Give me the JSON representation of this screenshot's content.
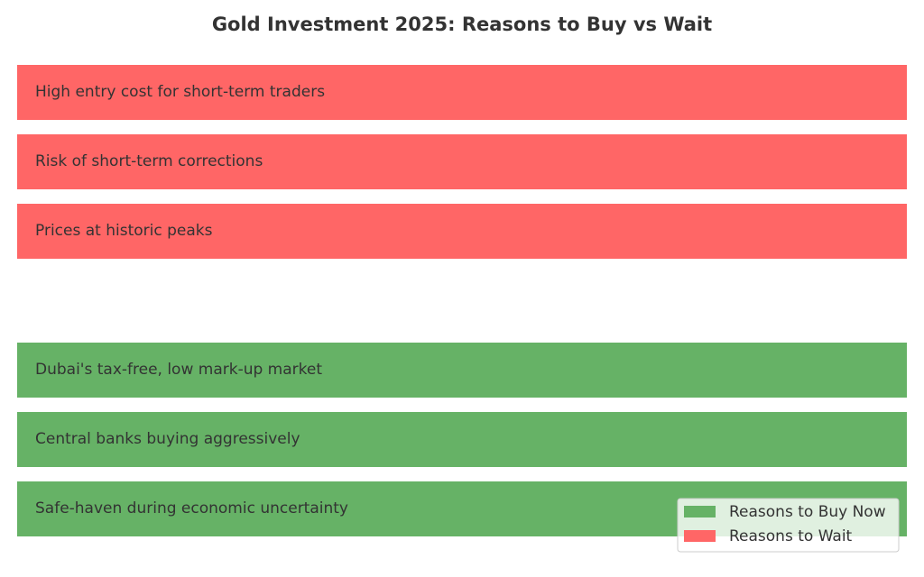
{
  "title": "Gold Investment 2025: Reasons to Buy vs Wait",
  "groups": [
    {
      "name": "Reasons to Buy Now",
      "color": "#66b266",
      "items": [
        "Dubai's tax-free, low mark-up market",
        "Central banks buying aggressively",
        "Safe-haven during economic uncertainty"
      ]
    },
    {
      "name": "Reasons to Wait",
      "color": "#ff6666",
      "items": [
        "High entry cost for short-term traders",
        "Risk of short-term corrections",
        "Prices at historic peaks"
      ]
    }
  ],
  "legend_position": "lower right"
}
